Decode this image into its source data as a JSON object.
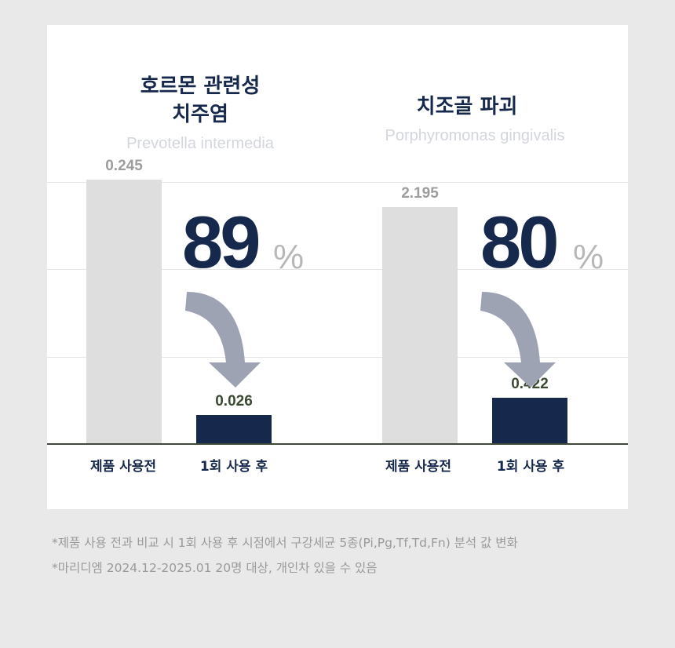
{
  "chart_data": [
    {
      "type": "bar",
      "title": "호르몬 관련성\n치주염",
      "title_lines": [
        "호르몬 관련성",
        "치주염"
      ],
      "subtitle": "Prevotella intermedia",
      "categories": [
        "제품 사용전",
        "1회 사용 후"
      ],
      "values": [
        0.245,
        0.026
      ],
      "value_labels": [
        "0.245",
        "0.026"
      ],
      "reduction_percent": "89",
      "percent_sign": "%",
      "grid": true
    },
    {
      "type": "bar",
      "title": "치조골 파괴",
      "title_lines": [
        "치조골 파괴"
      ],
      "subtitle": "Porphyromonas gingivalis",
      "categories": [
        "제품 사용전",
        "1회 사용 후"
      ],
      "values": [
        2.195,
        0.422
      ],
      "value_labels": [
        "2.195",
        "0.422"
      ],
      "reduction_percent": "80",
      "percent_sign": "%",
      "grid": true
    }
  ],
  "colors": {
    "before_bar": "#dedede",
    "after_bar": "#17284d",
    "accent_navy": "#17284d",
    "arrow": "#9ea3b3"
  },
  "icons": [
    "curved-down-arrow-icon"
  ],
  "footnotes": [
    "*제품 사용 전과 비교 시 1회 사용 후 시점에서 구강세균 5종(Pi,Pg,Tf,Td,Fn) 분석 값 변화",
    "*마리디엠 2024.12-2025.01 20명 대상, 개인차 있을 수 있음"
  ]
}
